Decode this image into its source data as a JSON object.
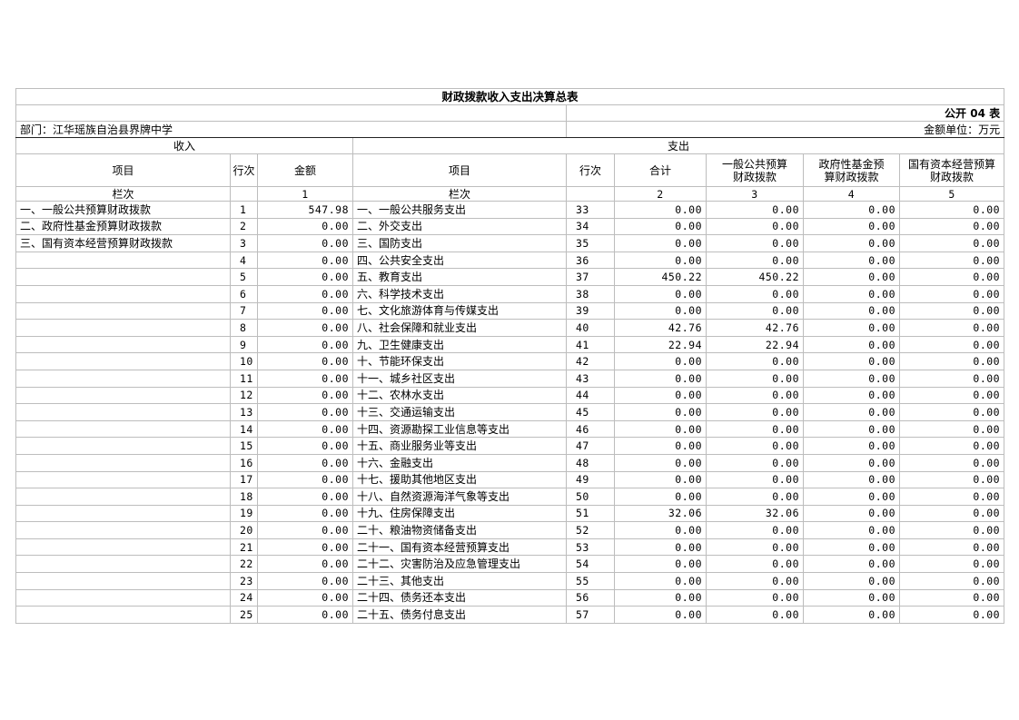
{
  "title": "财政拨款收入支出决算总表",
  "form_code": "公开 04 表",
  "department": "部门：江华瑶族自治县界牌中学",
  "unit": "金额单位：万元",
  "income_header": "收入",
  "expense_header": "支出",
  "columns": {
    "item": "项目",
    "row_no": "行次",
    "amount": "金额",
    "exp_item": "项目",
    "exp_row_no": "行次",
    "total": "合计",
    "general": "一般公共预算财政拨款",
    "fund": "政府性基金预算财政拨款",
    "state": "国有资本经营预算财政拨款"
  },
  "col_index": {
    "label": "栏次",
    "income_amount": "1",
    "total": "2",
    "general": "3",
    "fund": "4",
    "state": "5",
    "exp_label": "栏次"
  },
  "rows": [
    {
      "in_item": "一、一般公共预算财政拨款",
      "in_no": "1",
      "in_amt": "547.98",
      "ex_item": "一、一般公共服务支出",
      "ex_no": "33",
      "total": "0.00",
      "general": "0.00",
      "fund": "0.00",
      "state": "0.00"
    },
    {
      "in_item": "二、政府性基金预算财政拨款",
      "in_no": "2",
      "in_amt": "0.00",
      "ex_item": "二、外交支出",
      "ex_no": "34",
      "total": "0.00",
      "general": "0.00",
      "fund": "0.00",
      "state": "0.00"
    },
    {
      "in_item": "三、国有资本经营预算财政拨款",
      "in_no": "3",
      "in_amt": "0.00",
      "ex_item": "三、国防支出",
      "ex_no": "35",
      "total": "0.00",
      "general": "0.00",
      "fund": "0.00",
      "state": "0.00"
    },
    {
      "in_item": "",
      "in_no": "4",
      "in_amt": "0.00",
      "ex_item": "四、公共安全支出",
      "ex_no": "36",
      "total": "0.00",
      "general": "0.00",
      "fund": "0.00",
      "state": "0.00"
    },
    {
      "in_item": "",
      "in_no": "5",
      "in_amt": "0.00",
      "ex_item": "五、教育支出",
      "ex_no": "37",
      "total": "450.22",
      "general": "450.22",
      "fund": "0.00",
      "state": "0.00"
    },
    {
      "in_item": "",
      "in_no": "6",
      "in_amt": "0.00",
      "ex_item": "六、科学技术支出",
      "ex_no": "38",
      "total": "0.00",
      "general": "0.00",
      "fund": "0.00",
      "state": "0.00"
    },
    {
      "in_item": "",
      "in_no": "7",
      "in_amt": "0.00",
      "ex_item": "七、文化旅游体育与传媒支出",
      "ex_no": "39",
      "total": "0.00",
      "general": "0.00",
      "fund": "0.00",
      "state": "0.00"
    },
    {
      "in_item": "",
      "in_no": "8",
      "in_amt": "0.00",
      "ex_item": "八、社会保障和就业支出",
      "ex_no": "40",
      "total": "42.76",
      "general": "42.76",
      "fund": "0.00",
      "state": "0.00"
    },
    {
      "in_item": "",
      "in_no": "9",
      "in_amt": "0.00",
      "ex_item": "九、卫生健康支出",
      "ex_no": "41",
      "total": "22.94",
      "general": "22.94",
      "fund": "0.00",
      "state": "0.00"
    },
    {
      "in_item": "",
      "in_no": "10",
      "in_amt": "0.00",
      "ex_item": "十、节能环保支出",
      "ex_no": "42",
      "total": "0.00",
      "general": "0.00",
      "fund": "0.00",
      "state": "0.00"
    },
    {
      "in_item": "",
      "in_no": "11",
      "in_amt": "0.00",
      "ex_item": "十一、城乡社区支出",
      "ex_no": "43",
      "total": "0.00",
      "general": "0.00",
      "fund": "0.00",
      "state": "0.00"
    },
    {
      "in_item": "",
      "in_no": "12",
      "in_amt": "0.00",
      "ex_item": "十二、农林水支出",
      "ex_no": "44",
      "total": "0.00",
      "general": "0.00",
      "fund": "0.00",
      "state": "0.00"
    },
    {
      "in_item": "",
      "in_no": "13",
      "in_amt": "0.00",
      "ex_item": "十三、交通运输支出",
      "ex_no": "45",
      "total": "0.00",
      "general": "0.00",
      "fund": "0.00",
      "state": "0.00"
    },
    {
      "in_item": "",
      "in_no": "14",
      "in_amt": "0.00",
      "ex_item": "十四、资源勘探工业信息等支出",
      "ex_no": "46",
      "total": "0.00",
      "general": "0.00",
      "fund": "0.00",
      "state": "0.00"
    },
    {
      "in_item": "",
      "in_no": "15",
      "in_amt": "0.00",
      "ex_item": "十五、商业服务业等支出",
      "ex_no": "47",
      "total": "0.00",
      "general": "0.00",
      "fund": "0.00",
      "state": "0.00"
    },
    {
      "in_item": "",
      "in_no": "16",
      "in_amt": "0.00",
      "ex_item": "十六、金融支出",
      "ex_no": "48",
      "total": "0.00",
      "general": "0.00",
      "fund": "0.00",
      "state": "0.00"
    },
    {
      "in_item": "",
      "in_no": "17",
      "in_amt": "0.00",
      "ex_item": "十七、援助其他地区支出",
      "ex_no": "49",
      "total": "0.00",
      "general": "0.00",
      "fund": "0.00",
      "state": "0.00"
    },
    {
      "in_item": "",
      "in_no": "18",
      "in_amt": "0.00",
      "ex_item": "十八、自然资源海洋气象等支出",
      "ex_no": "50",
      "total": "0.00",
      "general": "0.00",
      "fund": "0.00",
      "state": "0.00"
    },
    {
      "in_item": "",
      "in_no": "19",
      "in_amt": "0.00",
      "ex_item": "十九、住房保障支出",
      "ex_no": "51",
      "total": "32.06",
      "general": "32.06",
      "fund": "0.00",
      "state": "0.00"
    },
    {
      "in_item": "",
      "in_no": "20",
      "in_amt": "0.00",
      "ex_item": "二十、粮油物资储备支出",
      "ex_no": "52",
      "total": "0.00",
      "general": "0.00",
      "fund": "0.00",
      "state": "0.00"
    },
    {
      "in_item": "",
      "in_no": "21",
      "in_amt": "0.00",
      "ex_item": "二十一、国有资本经营预算支出",
      "ex_no": "53",
      "total": "0.00",
      "general": "0.00",
      "fund": "0.00",
      "state": "0.00"
    },
    {
      "in_item": "",
      "in_no": "22",
      "in_amt": "0.00",
      "ex_item": "二十二、灾害防治及应急管理支出",
      "ex_no": "54",
      "total": "0.00",
      "general": "0.00",
      "fund": "0.00",
      "state": "0.00"
    },
    {
      "in_item": "",
      "in_no": "23",
      "in_amt": "0.00",
      "ex_item": "二十三、其他支出",
      "ex_no": "55",
      "total": "0.00",
      "general": "0.00",
      "fund": "0.00",
      "state": "0.00"
    },
    {
      "in_item": "",
      "in_no": "24",
      "in_amt": "0.00",
      "ex_item": "二十四、债务还本支出",
      "ex_no": "56",
      "total": "0.00",
      "general": "0.00",
      "fund": "0.00",
      "state": "0.00"
    },
    {
      "in_item": "",
      "in_no": "25",
      "in_amt": "0.00",
      "ex_item": "二十五、债务付息支出",
      "ex_no": "57",
      "total": "0.00",
      "general": "0.00",
      "fund": "0.00",
      "state": "0.00"
    }
  ]
}
